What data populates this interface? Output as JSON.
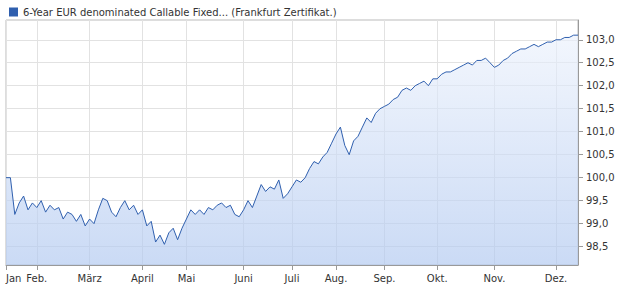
{
  "chart_data": {
    "type": "line",
    "legend": "top-left",
    "grid": true,
    "categories": [
      "Jan",
      null,
      null,
      null,
      null,
      null,
      null,
      "Feb.",
      null,
      null,
      null,
      null,
      null,
      null,
      null,
      null,
      null,
      null,
      null,
      "März",
      null,
      null,
      null,
      null,
      null,
      null,
      null,
      null,
      null,
      null,
      null,
      "April",
      null,
      null,
      null,
      null,
      null,
      null,
      null,
      null,
      null,
      "Mai",
      null,
      null,
      null,
      null,
      null,
      null,
      null,
      null,
      null,
      null,
      null,
      null,
      "Juni",
      null,
      null,
      null,
      null,
      null,
      null,
      null,
      null,
      null,
      null,
      "Juli",
      null,
      null,
      null,
      null,
      null,
      null,
      null,
      null,
      null,
      "Aug.",
      null,
      null,
      null,
      null,
      null,
      null,
      null,
      null,
      null,
      null,
      "Sep.",
      null,
      null,
      null,
      null,
      null,
      null,
      null,
      null,
      null,
      null,
      null,
      "Okt.",
      null,
      null,
      null,
      null,
      null,
      null,
      null,
      null,
      null,
      null,
      null,
      null,
      "Nov.",
      null,
      null,
      null,
      null,
      null,
      null,
      null,
      null,
      null,
      null,
      null,
      null,
      null,
      "Dez.",
      null,
      null,
      null,
      null,
      null
    ],
    "series": [
      {
        "name": "6-Year EUR denominated Callable Fixed... (Frankfurt Zertifikat.)",
        "color": "#2f5fae",
        "values": [
          100.0,
          100.0,
          99.2,
          99.45,
          99.6,
          99.3,
          99.45,
          99.35,
          99.5,
          99.25,
          99.4,
          99.3,
          99.35,
          99.1,
          99.25,
          99.2,
          99.05,
          99.2,
          98.95,
          99.1,
          99.0,
          99.3,
          99.55,
          99.5,
          99.25,
          99.15,
          99.35,
          99.5,
          99.3,
          99.4,
          99.2,
          99.3,
          98.95,
          99.05,
          98.6,
          98.75,
          98.55,
          98.8,
          98.9,
          98.65,
          98.9,
          99.1,
          99.3,
          99.2,
          99.3,
          99.2,
          99.35,
          99.3,
          99.4,
          99.45,
          99.35,
          99.4,
          99.2,
          99.15,
          99.3,
          99.5,
          99.35,
          99.6,
          99.85,
          99.7,
          99.8,
          99.75,
          99.95,
          99.55,
          99.65,
          99.8,
          99.95,
          99.9,
          100.0,
          100.2,
          100.35,
          100.3,
          100.45,
          100.55,
          100.75,
          100.95,
          101.1,
          100.7,
          100.5,
          100.8,
          100.9,
          101.1,
          101.3,
          101.2,
          101.4,
          101.5,
          101.55,
          101.6,
          101.7,
          101.75,
          101.9,
          101.95,
          101.9,
          102.0,
          102.05,
          102.1,
          102.0,
          102.15,
          102.15,
          102.25,
          102.3,
          102.3,
          102.35,
          102.4,
          102.45,
          102.5,
          102.45,
          102.55,
          102.55,
          102.6,
          102.5,
          102.4,
          102.45,
          102.55,
          102.6,
          102.7,
          102.75,
          102.8,
          102.8,
          102.85,
          102.9,
          102.85,
          102.9,
          102.95,
          102.95,
          103.0,
          103.0,
          103.05,
          103.05,
          103.1,
          103.1
        ]
      }
    ],
    "ylim": [
      98.1,
      103.43
    ],
    "yticks": [
      {
        "value": 98.5,
        "label": "98,5"
      },
      {
        "value": 99.0,
        "label": "99,0"
      },
      {
        "value": 99.5,
        "label": "99,5"
      },
      {
        "value": 100.0,
        "label": "100,0"
      },
      {
        "value": 100.5,
        "label": "100,5"
      },
      {
        "value": 101.0,
        "label": "101,0"
      },
      {
        "value": 101.5,
        "label": "101,5"
      },
      {
        "value": 102.0,
        "label": "102,0"
      },
      {
        "value": 102.5,
        "label": "102,5"
      },
      {
        "value": 103.0,
        "label": "103,0"
      }
    ]
  }
}
